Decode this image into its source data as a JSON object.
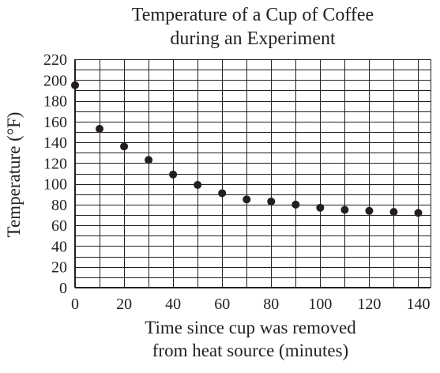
{
  "chart_data": {
    "type": "scatter",
    "title_lines": [
      "Temperature of a Cup of Coffee",
      "during an Experiment"
    ],
    "xlabel_lines": [
      "Time since cup was removed",
      "from heat source (minutes)"
    ],
    "ylabel": "Temperature (°F)",
    "xlim": [
      0,
      145
    ],
    "ylim": [
      0,
      220
    ],
    "x_ticks": [
      "0",
      "20",
      "40",
      "60",
      "80",
      "100",
      "120",
      "140"
    ],
    "y_ticks": [
      "0",
      "20",
      "40",
      "60",
      "80",
      "100",
      "120",
      "140",
      "160",
      "180",
      "200",
      "220"
    ],
    "x_tick_values": [
      0,
      20,
      40,
      60,
      80,
      100,
      120,
      140
    ],
    "y_tick_values": [
      0,
      20,
      40,
      60,
      80,
      100,
      120,
      140,
      160,
      180,
      200,
      220
    ],
    "grid": true,
    "grid_x_step": 10,
    "grid_y_step": 10,
    "points": [
      {
        "x": 0,
        "y": 195
      },
      {
        "x": 10,
        "y": 153
      },
      {
        "x": 20,
        "y": 136
      },
      {
        "x": 30,
        "y": 123
      },
      {
        "x": 40,
        "y": 109
      },
      {
        "x": 50,
        "y": 99
      },
      {
        "x": 60,
        "y": 91
      },
      {
        "x": 70,
        "y": 85
      },
      {
        "x": 80,
        "y": 83
      },
      {
        "x": 90,
        "y": 80
      },
      {
        "x": 100,
        "y": 77
      },
      {
        "x": 110,
        "y": 75
      },
      {
        "x": 120,
        "y": 74
      },
      {
        "x": 130,
        "y": 73
      },
      {
        "x": 140,
        "y": 72
      }
    ]
  }
}
